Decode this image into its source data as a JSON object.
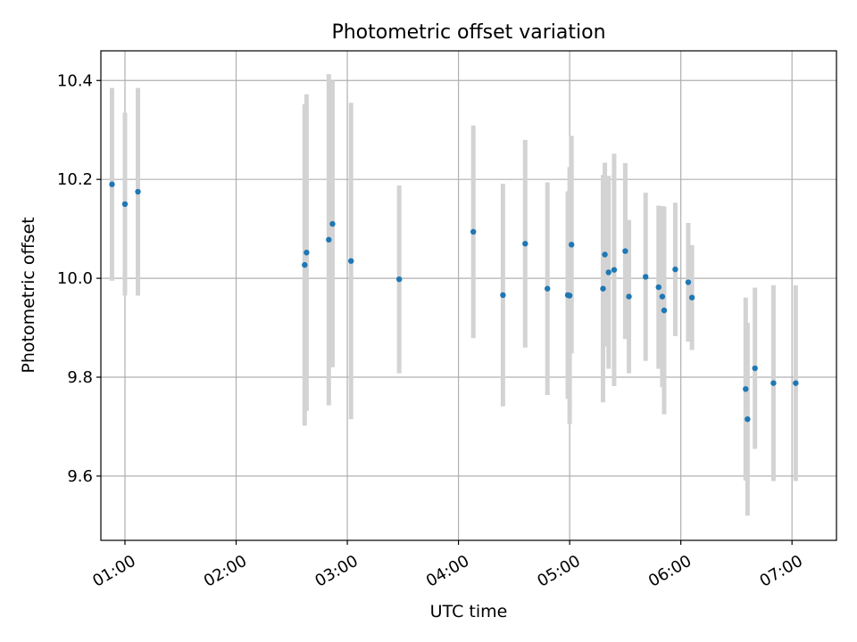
{
  "chart_data": {
    "type": "scatter",
    "title": "Photometric offset variation",
    "xlabel": "UTC time",
    "ylabel": "Photometric offset",
    "x_ticks": [
      "01:00",
      "02:00",
      "03:00",
      "04:00",
      "05:00",
      "06:00",
      "07:00"
    ],
    "y_ticks": [
      "9.6",
      "9.8",
      "10.0",
      "10.2",
      "10.4"
    ],
    "xlim": [
      "00:47",
      "07:24"
    ],
    "ylim": [
      9.47,
      10.46
    ],
    "grid": true,
    "series": [
      {
        "marker_color": "#1f77b4",
        "errorbar_color": "#d3d3d3",
        "points": [
          {
            "x": "00:53",
            "y": 10.19,
            "err": 0.195
          },
          {
            "x": "01:00",
            "y": 10.15,
            "err": 0.185
          },
          {
            "x": "01:07",
            "y": 10.175,
            "err": 0.21
          },
          {
            "x": "02:37",
            "y": 10.027,
            "err": 0.325
          },
          {
            "x": "02:38",
            "y": 10.052,
            "err": 0.32
          },
          {
            "x": "02:50",
            "y": 10.078,
            "err": 0.335
          },
          {
            "x": "02:52",
            "y": 10.11,
            "err": 0.29
          },
          {
            "x": "03:02",
            "y": 10.035,
            "err": 0.32
          },
          {
            "x": "03:28",
            "y": 9.998,
            "err": 0.19
          },
          {
            "x": "04:08",
            "y": 10.094,
            "err": 0.215
          },
          {
            "x": "04:24",
            "y": 9.966,
            "err": 0.225
          },
          {
            "x": "04:36",
            "y": 10.07,
            "err": 0.21
          },
          {
            "x": "04:48",
            "y": 9.979,
            "err": 0.215
          },
          {
            "x": "04:59",
            "y": 9.966,
            "err": 0.21
          },
          {
            "x": "05:00",
            "y": 9.965,
            "err": 0.26
          },
          {
            "x": "05:01",
            "y": 10.068,
            "err": 0.22
          },
          {
            "x": "05:18",
            "y": 9.979,
            "err": 0.23
          },
          {
            "x": "05:19",
            "y": 10.048,
            "err": 0.186
          },
          {
            "x": "05:21",
            "y": 10.012,
            "err": 0.195
          },
          {
            "x": "05:24",
            "y": 10.017,
            "err": 0.235
          },
          {
            "x": "05:30",
            "y": 10.055,
            "err": 0.178
          },
          {
            "x": "05:32",
            "y": 9.963,
            "err": 0.155
          },
          {
            "x": "05:41",
            "y": 10.003,
            "err": 0.17
          },
          {
            "x": "05:48",
            "y": 9.982,
            "err": 0.165
          },
          {
            "x": "05:50",
            "y": 9.963,
            "err": 0.183
          },
          {
            "x": "05:51",
            "y": 9.935,
            "err": 0.21
          },
          {
            "x": "05:57",
            "y": 10.018,
            "err": 0.135
          },
          {
            "x": "06:04",
            "y": 9.992,
            "err": 0.12
          },
          {
            "x": "06:06",
            "y": 9.961,
            "err": 0.106
          },
          {
            "x": "06:35",
            "y": 9.776,
            "err": 0.185
          },
          {
            "x": "06:36",
            "y": 9.715,
            "err": 0.195
          },
          {
            "x": "06:40",
            "y": 9.818,
            "err": 0.163
          },
          {
            "x": "06:50",
            "y": 9.788,
            "err": 0.198
          },
          {
            "x": "07:02",
            "y": 9.788,
            "err": 0.198
          }
        ]
      }
    ]
  }
}
